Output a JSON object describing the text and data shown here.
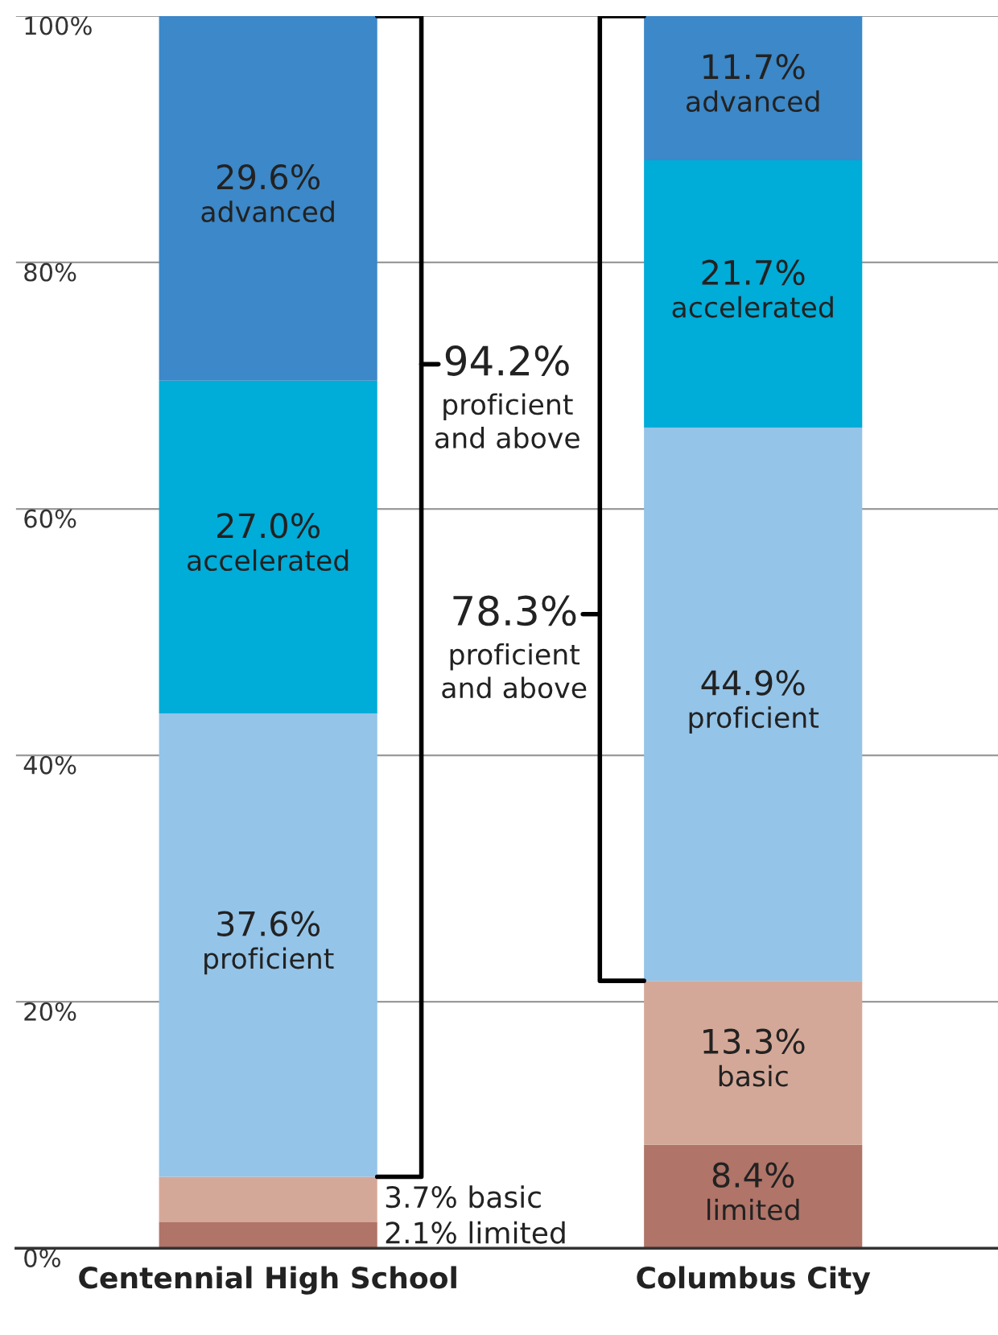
{
  "chart_data": {
    "type": "bar",
    "stacked": true,
    "categories": [
      "Centennial High School",
      "Columbus City"
    ],
    "ylim": [
      0,
      100
    ],
    "yticks": [
      {
        "value": 0,
        "label": "0%"
      },
      {
        "value": 20,
        "label": "20%"
      },
      {
        "value": 40,
        "label": "40%"
      },
      {
        "value": 60,
        "label": "60%"
      },
      {
        "value": 80,
        "label": "80%"
      },
      {
        "value": 100,
        "label": "100%"
      }
    ],
    "grid": "y",
    "legend": false,
    "series": [
      {
        "name": "limited",
        "color": "#b07468",
        "values": [
          2.1,
          8.4
        ],
        "value_labels": [
          "2.1%",
          "8.4%"
        ]
      },
      {
        "name": "basic",
        "color": "#d4a898",
        "values": [
          3.7,
          13.3
        ],
        "value_labels": [
          "3.7%",
          "13.3%"
        ]
      },
      {
        "name": "proficient",
        "color": "#94c4e8",
        "values": [
          37.6,
          44.9
        ],
        "value_labels": [
          "37.6%",
          "44.9%"
        ]
      },
      {
        "name": "accelerated",
        "color": "#00acd8",
        "values": [
          27.0,
          21.7
        ],
        "value_labels": [
          "27.0%",
          "21.7%"
        ]
      },
      {
        "name": "advanced",
        "color": "#3c88c8",
        "values": [
          29.6,
          11.7
        ],
        "value_labels": [
          "29.6%",
          "11.7%"
        ]
      }
    ],
    "annotations": [
      "94.2%\nproficient\nand above",
      "78.3%\nproficient\nand above"
    ]
  }
}
